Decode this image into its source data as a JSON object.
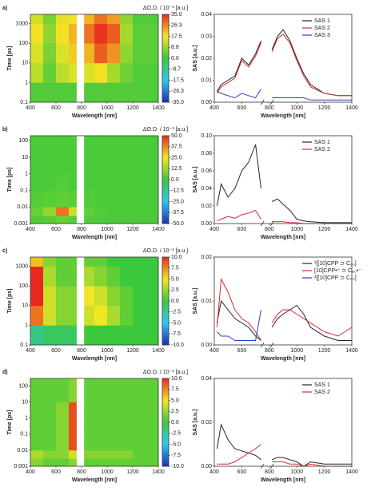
{
  "chart_data": [
    {
      "type": "heatmap",
      "panel_label": "a)",
      "xlabel": "Wavelength [nm]",
      "ylabel": "Time [ps]",
      "colorbar_label": "ΔO.D. / 10⁻³ [a.u.]",
      "xlim": [
        400,
        1400
      ],
      "xticks": [
        400,
        600,
        800,
        1000,
        1200,
        1400
      ],
      "ylim": [
        0.1,
        3000
      ],
      "yticks": [
        0.1,
        1,
        10,
        100,
        1000
      ],
      "log_y": true,
      "x_edges": [
        400,
        500,
        600,
        700,
        760,
        820,
        900,
        1000,
        1100,
        1200,
        1400
      ],
      "y_edges": [
        0.1,
        1,
        10,
        100,
        1000,
        3000
      ],
      "z": [
        [
          2,
          2,
          2,
          2,
          null,
          2,
          2,
          2,
          2,
          2
        ],
        [
          12,
          4,
          12,
          15,
          null,
          15,
          18,
          10,
          5,
          2
        ],
        [
          15,
          6,
          15,
          20,
          null,
          22,
          30,
          25,
          8,
          3
        ],
        [
          18,
          8,
          18,
          22,
          null,
          28,
          34,
          30,
          10,
          3
        ],
        [
          14,
          6,
          16,
          18,
          null,
          22,
          28,
          24,
          8,
          2
        ]
      ],
      "clim": [
        -35,
        35
      ],
      "cticks": [
        {
          "value": 35,
          "label": "35.0"
        },
        26.3,
        17.5,
        8.8,
        {
          "value": 0,
          "label": "0.0"
        },
        -8.7,
        -17.5,
        -26.3,
        {
          "value": -35,
          "label": "-35.0"
        }
      ],
      "colormap": [
        "#1a2fb8",
        "#2ec8f0",
        "#3cc83c",
        "#f2e624",
        "#e8281e"
      ]
    },
    {
      "type": "line",
      "xlabel": "Wavelength [nm]",
      "ylabel": "SAS [a.u.]",
      "xlim": [
        400,
        1400
      ],
      "xticks": [
        400,
        600,
        800,
        1000,
        1200,
        1400
      ],
      "x_break": [
        750,
        820
      ],
      "ylim": [
        0,
        0.04
      ],
      "yticks": [
        {
          "value": 0,
          "label": "0.00"
        },
        {
          "value": 0.01,
          "label": "0.01"
        },
        {
          "value": 0.02,
          "label": "0.02"
        },
        {
          "value": 0.03,
          "label": "0.03"
        },
        {
          "value": 0.04,
          "label": "0.04"
        }
      ],
      "legend": "upper right",
      "x": [
        420,
        450,
        500,
        550,
        600,
        650,
        700,
        740,
        780,
        820,
        860,
        900,
        950,
        1000,
        1050,
        1100,
        1200,
        1300,
        1400
      ],
      "series": [
        {
          "name": "SAS 1",
          "color": "#222222",
          "values": [
            0.005,
            0.008,
            0.01,
            0.012,
            0.02,
            0.017,
            0.022,
            0.028,
            null,
            0.024,
            0.03,
            0.033,
            0.028,
            0.02,
            0.013,
            0.008,
            0.004,
            0.003,
            0.003
          ]
        },
        {
          "name": "SAS 2",
          "color": "#d42a2a",
          "values": [
            0.004,
            0.007,
            0.009,
            0.011,
            0.019,
            0.016,
            0.021,
            0.027,
            null,
            0.023,
            0.029,
            0.031,
            0.027,
            0.019,
            0.012,
            0.007,
            0.004,
            0.003,
            0.003
          ]
        },
        {
          "name": "SAS 3",
          "color": "#2a3fc4",
          "values": [
            0.005,
            0.004,
            0.003,
            0.002,
            0.004,
            0.003,
            0.002,
            0.006,
            null,
            0.002,
            0.002,
            0.002,
            0.002,
            0.002,
            0.002,
            0.001,
            0.001,
            0.001,
            0.001
          ]
        }
      ]
    },
    {
      "type": "heatmap",
      "panel_label": "b)",
      "xlabel": "Wavelength [nm]",
      "ylabel": "Time [ps]",
      "colorbar_label": "ΔO.D. / 10⁻³ [a.u.]",
      "xlim": [
        400,
        1400
      ],
      "xticks": [
        400,
        600,
        800,
        1000,
        1200,
        1400
      ],
      "ylim": [
        0.001,
        200
      ],
      "yticks": [
        0.001,
        0.01,
        0.1,
        1,
        10,
        100
      ],
      "log_y": true,
      "x_edges": [
        400,
        500,
        600,
        700,
        760,
        820,
        900,
        1000,
        1100,
        1200,
        1400
      ],
      "y_edges": [
        0.001,
        0.003,
        0.01,
        0.1,
        1,
        10,
        200
      ],
      "z": [
        [
          3,
          4,
          6,
          4,
          null,
          3,
          2,
          2,
          2,
          2
        ],
        [
          6,
          12,
          40,
          20,
          null,
          5,
          3,
          2,
          2,
          2
        ],
        [
          3,
          4,
          5,
          4,
          null,
          3,
          2,
          2,
          2,
          2
        ],
        [
          2,
          2,
          3,
          2,
          null,
          2,
          2,
          2,
          2,
          2
        ],
        [
          2,
          2,
          2,
          2,
          null,
          2,
          2,
          2,
          2,
          2
        ],
        [
          2,
          2,
          2,
          2,
          null,
          2,
          2,
          2,
          2,
          2
        ]
      ],
      "clim": [
        -50,
        50
      ],
      "cticks": [
        {
          "value": 50,
          "label": "50.0"
        },
        37.5,
        {
          "value": 25,
          "label": "25.0"
        },
        12.5,
        {
          "value": 0,
          "label": "0.0"
        },
        -12.5,
        {
          "value": -25,
          "label": "-25.0"
        },
        -37.5,
        {
          "value": -50,
          "label": "-50.0"
        }
      ],
      "colormap": [
        "#1a2fb8",
        "#2ec8f0",
        "#3cc83c",
        "#f2e624",
        "#e8281e"
      ]
    },
    {
      "type": "line",
      "xlabel": "Wavelength [nm]",
      "ylabel": "SAS [a.u.]",
      "xlim": [
        400,
        1400
      ],
      "xticks": [
        400,
        600,
        800,
        1000,
        1200,
        1400
      ],
      "x_break": [
        750,
        820
      ],
      "ylim": [
        0,
        0.1
      ],
      "yticks": [
        {
          "value": 0,
          "label": "0.00"
        },
        {
          "value": 0.02,
          "label": "0.02"
        },
        {
          "value": 0.04,
          "label": "0.04"
        },
        {
          "value": 0.06,
          "label": "0.06"
        },
        {
          "value": 0.08,
          "label": "0.08"
        },
        {
          "value": 0.1,
          "label": "0.10"
        }
      ],
      "legend": "upper right",
      "x": [
        420,
        450,
        500,
        550,
        600,
        650,
        700,
        740,
        780,
        820,
        860,
        900,
        950,
        1000,
        1050,
        1100,
        1200,
        1300,
        1400
      ],
      "series": [
        {
          "name": "SAS 1",
          "color": "#222222",
          "values": [
            0.02,
            0.045,
            0.03,
            0.04,
            0.06,
            0.07,
            0.09,
            0.04,
            null,
            0.025,
            0.028,
            0.022,
            0.015,
            0.005,
            0.003,
            0.002,
            0.001,
            0.001,
            0.001
          ]
        },
        {
          "name": "SAS 2",
          "color": "#d42a2a",
          "values": [
            0.003,
            0.005,
            0.008,
            0.006,
            0.01,
            0.012,
            0.015,
            0.005,
            null,
            0.002,
            0.002,
            0.002,
            0.001,
            0.001,
            0,
            0,
            0,
            0,
            0
          ]
        }
      ]
    },
    {
      "type": "heatmap",
      "panel_label": "c)",
      "xlabel": "Wavelength [nm]",
      "ylabel": "Time [ps]",
      "colorbar_label": "ΔO.D. / 10⁻³ [a.u.]",
      "xlim": [
        400,
        1400
      ],
      "xticks": [
        400,
        600,
        800,
        1000,
        1200,
        1400
      ],
      "ylim": [
        0.1,
        3000
      ],
      "yticks": [
        0.1,
        1,
        10,
        100,
        1000
      ],
      "log_y": true,
      "x_edges": [
        400,
        500,
        600,
        700,
        760,
        820,
        900,
        1000,
        1100,
        1200,
        1400
      ],
      "y_edges": [
        0.1,
        1,
        10,
        100,
        1000,
        3000
      ],
      "z": [
        [
          -2,
          -1,
          -1,
          -1,
          null,
          0,
          0,
          0,
          0,
          0
        ],
        [
          8,
          4,
          2,
          2,
          null,
          4,
          5,
          3,
          1,
          0
        ],
        [
          10,
          4,
          2,
          2,
          null,
          5,
          4,
          2,
          1,
          0
        ],
        [
          10,
          3,
          1,
          1,
          null,
          3,
          2,
          1,
          0,
          0
        ],
        [
          6,
          2,
          1,
          1,
          null,
          1,
          1,
          0,
          0,
          0
        ]
      ],
      "clim": [
        -10,
        10
      ],
      "cticks": [
        {
          "value": 10,
          "label": "10.0"
        },
        7.5,
        {
          "value": 5,
          "label": "5.0"
        },
        2.5,
        {
          "value": 0,
          "label": "0.0"
        },
        -2.5,
        {
          "value": -5,
          "label": "-5.0"
        },
        -7.5,
        {
          "value": -10,
          "label": "-10.0"
        }
      ],
      "colormap": [
        "#1a2fb8",
        "#2ec8f0",
        "#3cc83c",
        "#f2e624",
        "#e8281e"
      ]
    },
    {
      "type": "line",
      "xlabel": "Wavelength [nm]",
      "ylabel": "SAS [a.u.]",
      "xlim": [
        400,
        1400
      ],
      "xticks": [
        400,
        600,
        800,
        1000,
        1200,
        1400
      ],
      "x_break": [
        750,
        820
      ],
      "ylim": [
        0,
        0.02
      ],
      "yticks": [
        {
          "value": 0,
          "label": "0.00"
        },
        {
          "value": 0.01,
          "label": "0.01"
        },
        {
          "value": 0.02,
          "label": "0.02"
        }
      ],
      "legend": "upper right",
      "x": [
        420,
        450,
        500,
        550,
        600,
        650,
        700,
        740,
        780,
        820,
        860,
        900,
        950,
        1000,
        1050,
        1100,
        1200,
        1300,
        1400
      ],
      "series": [
        {
          "name": "¹[[10]CPP ⊃ C₆₀]",
          "color": "#222222",
          "values": [
            0.005,
            0.01,
            0.008,
            0.006,
            0.005,
            0.004,
            0.002,
            0.001,
            null,
            0.004,
            0.006,
            0.007,
            0.008,
            0.009,
            0.007,
            0.004,
            0.002,
            0.001,
            0.001
          ]
        },
        {
          "name": "[10]CPP•⁺ ⊃ C₆₀•⁻",
          "color": "#d42a2a",
          "values": [
            0.004,
            0.015,
            0.012,
            0.008,
            0.006,
            0.005,
            0.003,
            0.001,
            null,
            0.005,
            0.007,
            0.008,
            0.008,
            0.007,
            0.006,
            0.005,
            0.003,
            0.002,
            0.004
          ]
        },
        {
          "name": "³[[10]CPP ⊃ C₆₀]",
          "color": "#2a3fc4",
          "values": [
            0.003,
            0.002,
            0.002,
            0.001,
            0.001,
            0.001,
            0.001,
            0.008,
            null,
            null,
            null,
            null,
            null,
            null,
            null,
            null,
            null,
            null,
            null
          ]
        }
      ]
    },
    {
      "type": "heatmap",
      "panel_label": "d)",
      "xlabel": "Wavelength [nm]",
      "ylabel": "Time [ps]",
      "colorbar_label": "ΔO.D. / 10⁻³ [a.u.]",
      "xlim": [
        400,
        1400
      ],
      "xticks": [
        400,
        600,
        800,
        1000,
        1200,
        1400
      ],
      "ylim": [
        0.001,
        300
      ],
      "yticks": [
        0.001,
        0.01,
        0.1,
        1,
        10,
        100
      ],
      "log_y": true,
      "x_edges": [
        400,
        500,
        600,
        700,
        760,
        820,
        900,
        1000,
        1100,
        1200,
        1400
      ],
      "y_edges": [
        0.001,
        0.003,
        0.01,
        0.1,
        1,
        10,
        300
      ],
      "z": [
        [
          2,
          1,
          1,
          2,
          null,
          1,
          1,
          1,
          1,
          1
        ],
        [
          3,
          2,
          2,
          4,
          null,
          2,
          2,
          2,
          2,
          1
        ],
        [
          1,
          1,
          2,
          9,
          null,
          1,
          1,
          1,
          1,
          1
        ],
        [
          1,
          1,
          2,
          9,
          null,
          1,
          1,
          1,
          1,
          1
        ],
        [
          1,
          1,
          2,
          9,
          null,
          1,
          1,
          1,
          1,
          1
        ],
        [
          1,
          1,
          1,
          2,
          null,
          1,
          1,
          1,
          1,
          1
        ]
      ],
      "clim": [
        -10,
        10
      ],
      "cticks": [
        {
          "value": 10,
          "label": "10.0"
        },
        7.5,
        {
          "value": 5,
          "label": "5.0"
        },
        2.5,
        {
          "value": 0,
          "label": "0.0"
        },
        -2.5,
        {
          "value": -5,
          "label": "-5.0"
        },
        -7.5,
        {
          "value": -10,
          "label": "-10.0"
        }
      ],
      "colormap": [
        "#1a2fb8",
        "#2ec8f0",
        "#3cc83c",
        "#f2e624",
        "#e8281e"
      ]
    },
    {
      "type": "line",
      "xlabel": "Wavelength [nm]",
      "ylabel": "SAS [a.u.]",
      "xlim": [
        400,
        1400
      ],
      "xticks": [
        400,
        600,
        800,
        1000,
        1200,
        1400
      ],
      "x_break": [
        750,
        820
      ],
      "ylim": [
        0,
        0.04
      ],
      "yticks": [
        {
          "value": 0,
          "label": "0.00"
        },
        {
          "value": 0.02,
          "label": "0.02"
        },
        {
          "value": 0.04,
          "label": "0.04"
        }
      ],
      "legend": "upper right",
      "x": [
        420,
        450,
        500,
        550,
        600,
        650,
        700,
        740,
        780,
        820,
        860,
        900,
        950,
        1000,
        1050,
        1100,
        1200,
        1300,
        1400
      ],
      "series": [
        {
          "name": "SAS 1",
          "color": "#222222",
          "values": [
            0.008,
            0.019,
            0.012,
            0.008,
            0.007,
            0.006,
            0.005,
            0.003,
            null,
            0.003,
            0.004,
            0.004,
            0.003,
            0.002,
            0,
            0.002,
            0.001,
            0.001,
            0.001
          ]
        },
        {
          "name": "SAS 2",
          "color": "#d42a2a",
          "values": [
            0.001,
            0.001,
            0.001,
            0.002,
            0.004,
            0.006,
            0.008,
            0.01,
            null,
            0.002,
            0.002,
            0.002,
            0.001,
            0.001,
            0,
            0.001,
            0,
            0,
            0
          ]
        }
      ]
    }
  ]
}
